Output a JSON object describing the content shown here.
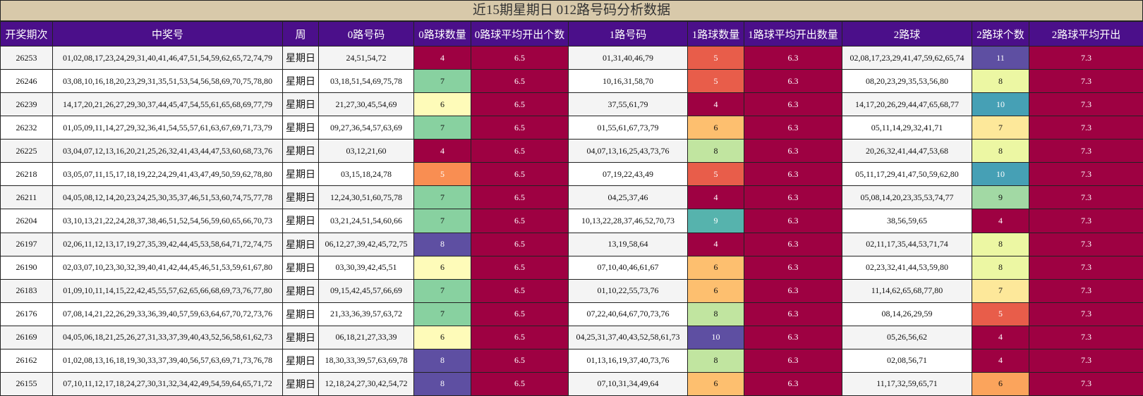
{
  "title": "近15期星期日 012路号码分析数据",
  "headers": [
    "开奖期次",
    "中奖号",
    "周",
    "0路号码",
    "0路球数量",
    "0路球平均开出个数",
    "1路号码",
    "1路球数量",
    "1路球平均开出数量",
    "2路球",
    "2路球个数",
    "2路球平均开出"
  ],
  "rows": [
    {
      "period": "26253",
      "numbers": "01,02,08,17,23,24,29,31,40,41,46,47,51,54,59,62,65,72,74,79",
      "week": "星期日",
      "r0": "24,51,54,72",
      "c0": "4",
      "avg0": "6.5",
      "r1": "01,31,40,46,79",
      "c1": "5",
      "avg1": "6.3",
      "r2": "02,08,17,23,29,41,47,59,62,65,74",
      "c2": "11",
      "avg2": "7.3"
    },
    {
      "period": "26246",
      "numbers": "03,08,10,16,18,20,23,29,31,35,51,53,54,56,58,69,70,75,78,80",
      "week": "星期日",
      "r0": "03,18,51,54,69,75,78",
      "c0": "7",
      "avg0": "6.5",
      "r1": "10,16,31,58,70",
      "c1": "5",
      "avg1": "6.3",
      "r2": "08,20,23,29,35,53,56,80",
      "c2": "8",
      "avg2": "7.3"
    },
    {
      "period": "26239",
      "numbers": "14,17,20,21,26,27,29,30,37,44,45,47,54,55,61,65,68,69,77,79",
      "week": "星期日",
      "r0": "21,27,30,45,54,69",
      "c0": "6",
      "avg0": "6.5",
      "r1": "37,55,61,79",
      "c1": "4",
      "avg1": "6.3",
      "r2": "14,17,20,26,29,44,47,65,68,77",
      "c2": "10",
      "avg2": "7.3"
    },
    {
      "period": "26232",
      "numbers": "01,05,09,11,14,27,29,32,36,41,54,55,57,61,63,67,69,71,73,79",
      "week": "星期日",
      "r0": "09,27,36,54,57,63,69",
      "c0": "7",
      "avg0": "6.5",
      "r1": "01,55,61,67,73,79",
      "c1": "6",
      "avg1": "6.3",
      "r2": "05,11,14,29,32,41,71",
      "c2": "7",
      "avg2": "7.3"
    },
    {
      "period": "26225",
      "numbers": "03,04,07,12,13,16,20,21,25,26,32,41,43,44,47,53,60,68,73,76",
      "week": "星期日",
      "r0": "03,12,21,60",
      "c0": "4",
      "avg0": "6.5",
      "r1": "04,07,13,16,25,43,73,76",
      "c1": "8",
      "avg1": "6.3",
      "r2": "20,26,32,41,44,47,53,68",
      "c2": "8",
      "avg2": "7.3"
    },
    {
      "period": "26218",
      "numbers": "03,05,07,11,15,17,18,19,22,24,29,41,43,47,49,50,59,62,78,80",
      "week": "星期日",
      "r0": "03,15,18,24,78",
      "c0": "5",
      "avg0": "6.5",
      "r1": "07,19,22,43,49",
      "c1": "5",
      "avg1": "6.3",
      "r2": "05,11,17,29,41,47,50,59,62,80",
      "c2": "10",
      "avg2": "7.3"
    },
    {
      "period": "26211",
      "numbers": "04,05,08,12,14,20,23,24,25,30,35,37,46,51,53,60,74,75,77,78",
      "week": "星期日",
      "r0": "12,24,30,51,60,75,78",
      "c0": "7",
      "avg0": "6.5",
      "r1": "04,25,37,46",
      "c1": "4",
      "avg1": "6.3",
      "r2": "05,08,14,20,23,35,53,74,77",
      "c2": "9",
      "avg2": "7.3"
    },
    {
      "period": "26204",
      "numbers": "03,10,13,21,22,24,28,37,38,46,51,52,54,56,59,60,65,66,70,73",
      "week": "星期日",
      "r0": "03,21,24,51,54,60,66",
      "c0": "7",
      "avg0": "6.5",
      "r1": "10,13,22,28,37,46,52,70,73",
      "c1": "9",
      "avg1": "6.3",
      "r2": "38,56,59,65",
      "c2": "4",
      "avg2": "7.3"
    },
    {
      "period": "26197",
      "numbers": "02,06,11,12,13,17,19,27,35,39,42,44,45,53,58,64,71,72,74,75",
      "week": "星期日",
      "r0": "06,12,27,39,42,45,72,75",
      "c0": "8",
      "avg0": "6.5",
      "r1": "13,19,58,64",
      "c1": "4",
      "avg1": "6.3",
      "r2": "02,11,17,35,44,53,71,74",
      "c2": "8",
      "avg2": "7.3"
    },
    {
      "period": "26190",
      "numbers": "02,03,07,10,23,30,32,39,40,41,42,44,45,46,51,53,59,61,67,80",
      "week": "星期日",
      "r0": "03,30,39,42,45,51",
      "c0": "6",
      "avg0": "6.5",
      "r1": "07,10,40,46,61,67",
      "c1": "6",
      "avg1": "6.3",
      "r2": "02,23,32,41,44,53,59,80",
      "c2": "8",
      "avg2": "7.3"
    },
    {
      "period": "26183",
      "numbers": "01,09,10,11,14,15,22,42,45,55,57,62,65,66,68,69,73,76,77,80",
      "week": "星期日",
      "r0": "09,15,42,45,57,66,69",
      "c0": "7",
      "avg0": "6.5",
      "r1": "01,10,22,55,73,76",
      "c1": "6",
      "avg1": "6.3",
      "r2": "11,14,62,65,68,77,80",
      "c2": "7",
      "avg2": "7.3"
    },
    {
      "period": "26176",
      "numbers": "07,08,14,21,22,26,29,33,36,39,40,57,59,63,64,67,70,72,73,76",
      "week": "星期日",
      "r0": "21,33,36,39,57,63,72",
      "c0": "7",
      "avg0": "6.5",
      "r1": "07,22,40,64,67,70,73,76",
      "c1": "8",
      "avg1": "6.3",
      "r2": "08,14,26,29,59",
      "c2": "5",
      "avg2": "7.3"
    },
    {
      "period": "26169",
      "numbers": "04,05,06,18,21,25,26,27,31,33,37,39,40,43,52,56,58,61,62,73",
      "week": "星期日",
      "r0": "06,18,21,27,33,39",
      "c0": "6",
      "avg0": "6.5",
      "r1": "04,25,31,37,40,43,52,58,61,73",
      "c1": "10",
      "avg1": "6.3",
      "r2": "05,26,56,62",
      "c2": "4",
      "avg2": "7.3"
    },
    {
      "period": "26162",
      "numbers": "01,02,08,13,16,18,19,30,33,37,39,40,56,57,63,69,71,73,76,78",
      "week": "星期日",
      "r0": "18,30,33,39,57,63,69,78",
      "c0": "8",
      "avg0": "6.5",
      "r1": "01,13,16,19,37,40,73,76",
      "c1": "8",
      "avg1": "6.3",
      "r2": "02,08,56,71",
      "c2": "4",
      "avg2": "7.3"
    },
    {
      "period": "26155",
      "numbers": "07,10,11,12,17,18,24,27,30,31,32,34,42,49,54,59,64,65,71,72",
      "week": "星期日",
      "r0": "12,18,24,27,30,42,54,72",
      "c0": "8",
      "avg0": "6.5",
      "r1": "07,10,31,34,49,64",
      "c1": "6",
      "avg1": "6.3",
      "r2": "11,17,32,59,65,71",
      "c2": "6",
      "avg2": "7.3"
    }
  ],
  "count_colors": {
    "4": "#9e0142",
    "5": "#e85d4a",
    "6": "#fdbf6f",
    "7": "#88d1a0",
    "8": "#5e4fa2",
    "9": "#56b3ad",
    "10": "#5e4fa2",
    "11": "#5e4fa2"
  },
  "c0_colors": {
    "4": "#9e0142",
    "5": "#f98e52",
    "6": "#fefbb9",
    "7": "#88d1a0",
    "8": "#5e4fa2"
  },
  "c1_colors": {
    "4": "#9e0142",
    "5": "#e85d4a",
    "6": "#fdbf6f",
    "8": "#c1e5a0",
    "9": "#56b3ad",
    "10": "#5e4fa2"
  },
  "c2_colors": {
    "4": "#9e0142",
    "5": "#e85d4a",
    "6": "#fba45c",
    "7": "#fde89a",
    "8": "#ecf7a3",
    "9": "#a2d9a4",
    "10": "#46a0b5",
    "11": "#5e4fa2"
  },
  "avg_color": "#9e0142",
  "header_color": "#4b0f8a",
  "title_bg": "#d8c9aa"
}
